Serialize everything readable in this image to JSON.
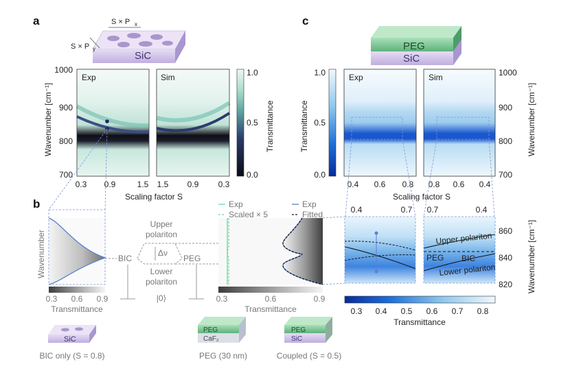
{
  "panel_labels": {
    "a": "a",
    "b": "b",
    "c": "c"
  },
  "a": {
    "schem": {
      "sx": "S × P",
      "sx_sub": "x",
      "sy": "S × P",
      "sy_sub": "y",
      "slab": "SiC"
    },
    "ylabel": "Wavenumber [cm⁻¹]",
    "yticks": [
      "1000",
      "900",
      "800",
      "700"
    ],
    "xlabel": "Scaling factor S",
    "exp_label": "Exp",
    "sim_label": "Sim",
    "exp_xticks": [
      "0.3",
      "0.9",
      "1.5"
    ],
    "sim_xticks": [
      "1.5",
      "0.9",
      "0.3"
    ],
    "cbar_ticks": [
      "1.0",
      "0.5",
      "0.0"
    ],
    "cbar_label": "Transmittance"
  },
  "c": {
    "schem": {
      "top": "PEG",
      "bottom": "SiC"
    },
    "cbar_label": "Transmittance",
    "cbar_ticks": [
      "1.0",
      "0.5",
      "0.0"
    ],
    "exp_label": "Exp",
    "sim_label": "Sim",
    "ylabel": "Wavenumber [cm⁻¹]",
    "yticks": [
      "1000",
      "900",
      "800",
      "700"
    ],
    "exp_xticks": [
      "0.4",
      "0.6",
      "0.8"
    ],
    "sim_xticks": [
      "0.8",
      "0.6",
      "0.4"
    ],
    "xlabel": "Scaling factor S",
    "zoom_exp_xticks": [
      "0.4",
      "0.7"
    ],
    "zoom_sim_xticks": [
      "0.7",
      "0.4"
    ],
    "zoom_yticks": [
      "860",
      "840",
      "820"
    ],
    "zoom_labels": {
      "upper": "Upper polariton",
      "peg": "PEG",
      "bic": "BIC",
      "lower": "Lower polariton"
    },
    "hbar_ticks": [
      "0.3",
      "0.4",
      "0.5",
      "0.6",
      "0.7",
      "0.8"
    ],
    "hbar_label": "Transmittance"
  },
  "b": {
    "ylabel": "Wavenumber",
    "left_ticks": [
      "0.3",
      "0.6",
      "0.9"
    ],
    "left_xlabel": "Transmittance",
    "levels": {
      "upper": "Upper",
      "upper2": "polariton",
      "lower": "Lower",
      "lower2": "polariton",
      "bic": "BIC",
      "peg": "PEG",
      "dnu": "Δν",
      "ground": "|0⟩"
    },
    "legend": {
      "exp1": "Exp",
      "scaled": "Scaled × 5",
      "exp2": "Exp",
      "fitted": "Fitted"
    },
    "right_ticks": [
      "0.3",
      "0.6",
      "0.9"
    ],
    "right_xlabel": "Transmittance",
    "chips": {
      "sic": "SiC",
      "peg": "PEG",
      "caf2": "CaF₂",
      "peg2": "PEG",
      "sic2": "SiC"
    },
    "captions": {
      "bic": "BIC only (S = 0.8)",
      "peg": "PEG (30 nm)",
      "coupled": "Coupled (S = 0.5)"
    }
  },
  "colors": {
    "exp_line": "#6fd89b",
    "fit_line": "#1a1a1a",
    "exp_blue": "#5b7fd6",
    "dashed": "#7e95d8",
    "accent_blue": "#1552c8"
  }
}
